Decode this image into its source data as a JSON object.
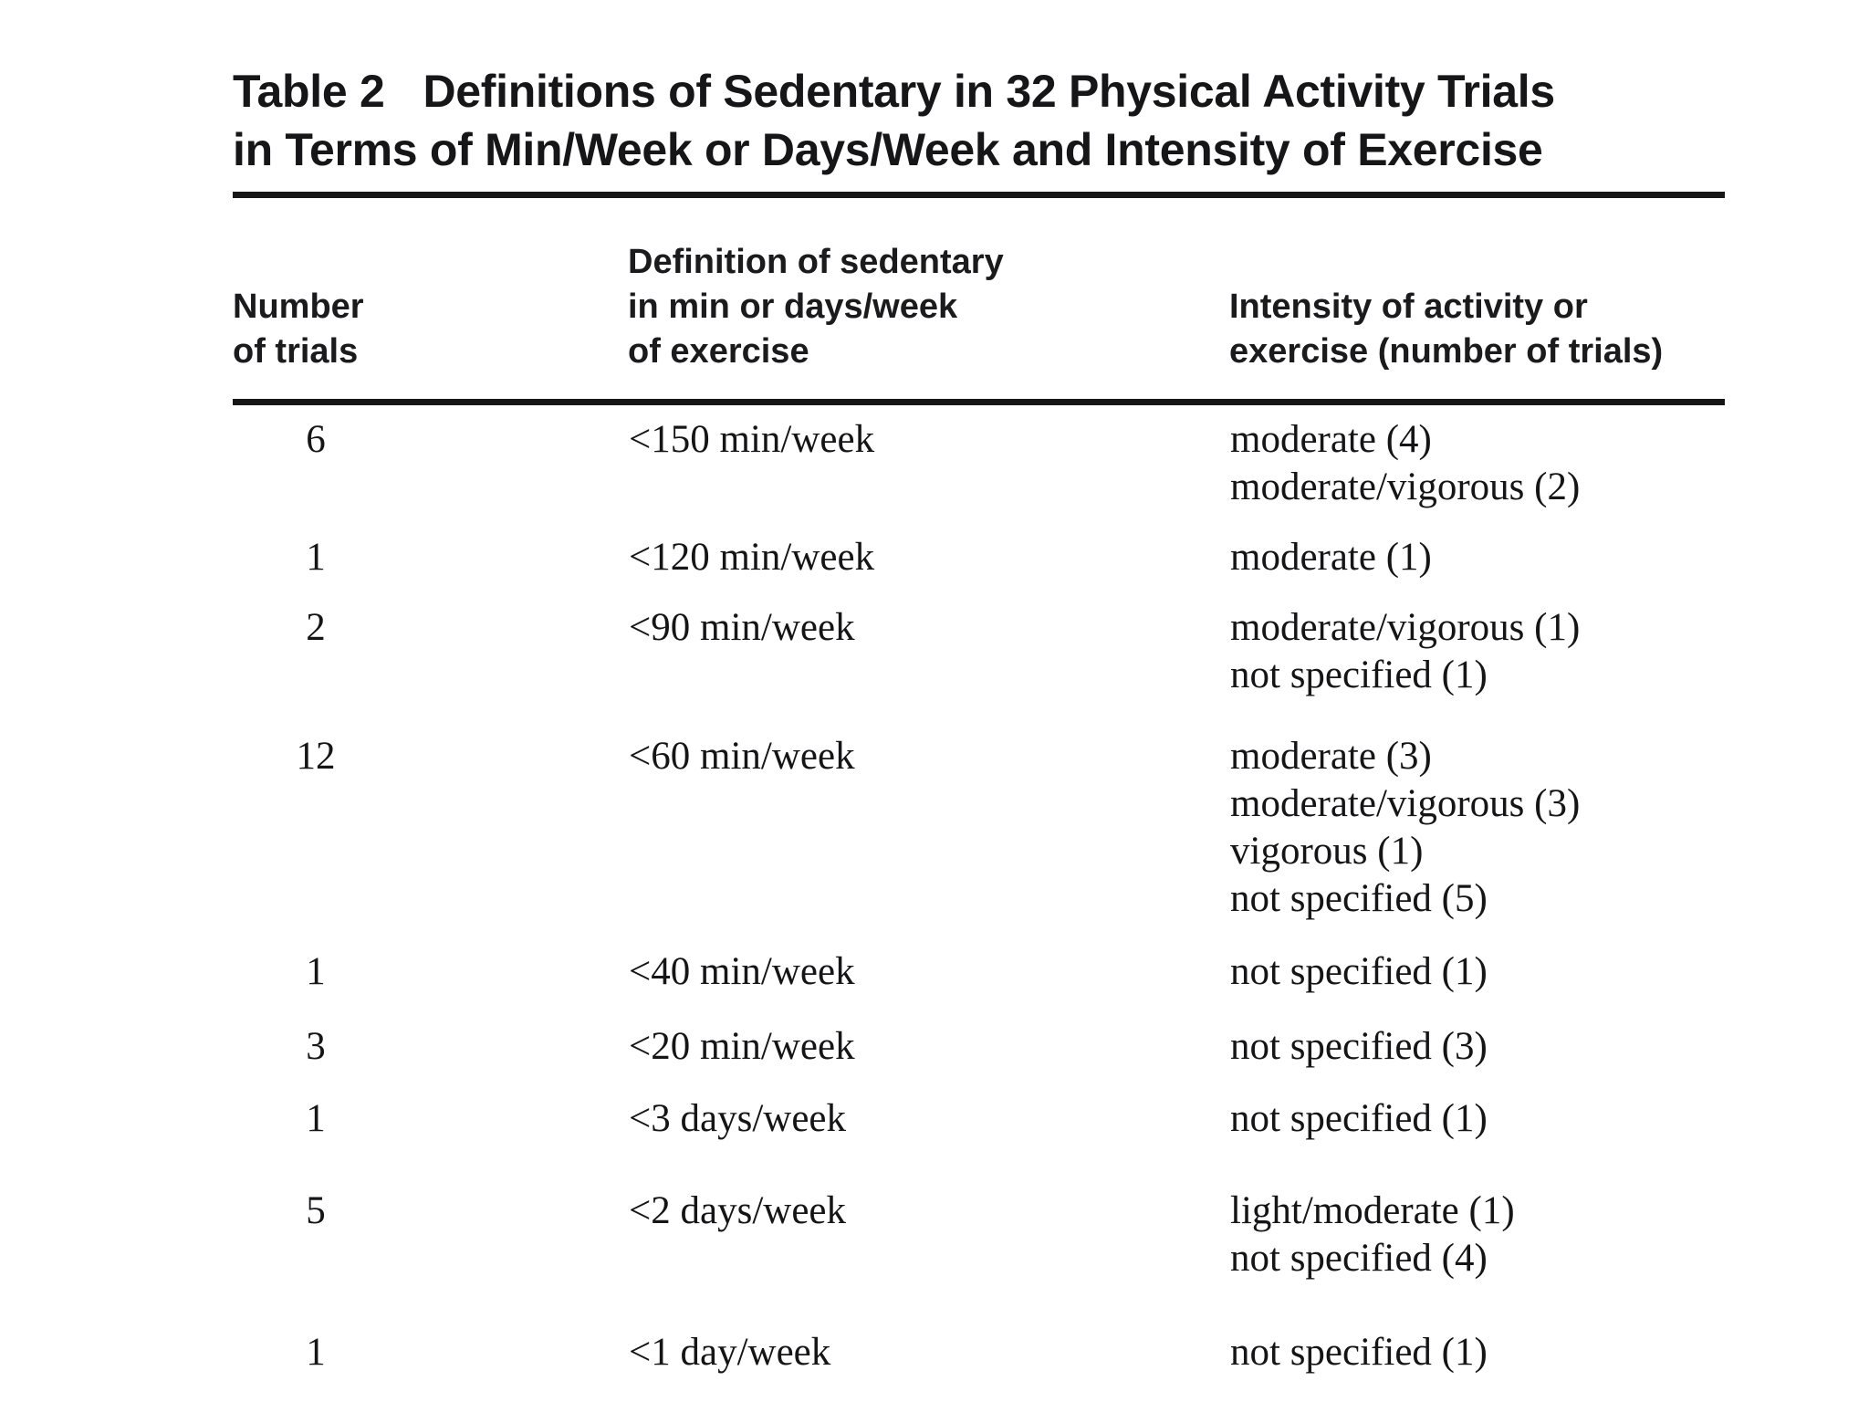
{
  "table": {
    "label": "Table 2",
    "title_line1": "Definitions of Sedentary in 32 Physical Activity Trials",
    "title_line2": "in Terms of Min/Week or Days/Week and Intensity of Exercise",
    "columns": [
      {
        "lines": [
          "Number",
          "of trials"
        ]
      },
      {
        "lines": [
          "Definition of sedentary",
          "in min or days/week",
          "of exercise"
        ]
      },
      {
        "lines": [
          "Intensity of activity or",
          "exercise (number of trials)"
        ]
      }
    ],
    "rows": [
      {
        "trials": "6",
        "definition": "<150 min/week",
        "intensity": [
          "moderate (4)",
          "moderate/vigorous (2)"
        ]
      },
      {
        "trials": "1",
        "definition": "<120 min/week",
        "intensity": [
          "moderate (1)"
        ]
      },
      {
        "trials": "2",
        "definition": "<90 min/week",
        "intensity": [
          "moderate/vigorous (1)",
          "not specified (1)"
        ]
      },
      {
        "trials": "12",
        "definition": "<60 min/week",
        "intensity": [
          "moderate (3)",
          "moderate/vigorous (3)",
          "vigorous (1)",
          "not specified (5)"
        ]
      },
      {
        "trials": "1",
        "definition": "<40 min/week",
        "intensity": [
          "not specified (1)"
        ]
      },
      {
        "trials": "3",
        "definition": "<20 min/week",
        "intensity": [
          "not specified (3)"
        ]
      },
      {
        "trials": "1",
        "definition": "<3 days/week",
        "intensity": [
          "not specified (1)"
        ]
      },
      {
        "trials": "5",
        "definition": "<2 days/week",
        "intensity": [
          "light/moderate (1)",
          "not specified (4)"
        ]
      },
      {
        "trials": "1",
        "definition": "<1 day/week",
        "intensity": [
          "not specified (1)"
        ]
      }
    ],
    "colors": {
      "text": "#1b1b1d",
      "rule": "#161616",
      "background": "#ffffff"
    }
  }
}
